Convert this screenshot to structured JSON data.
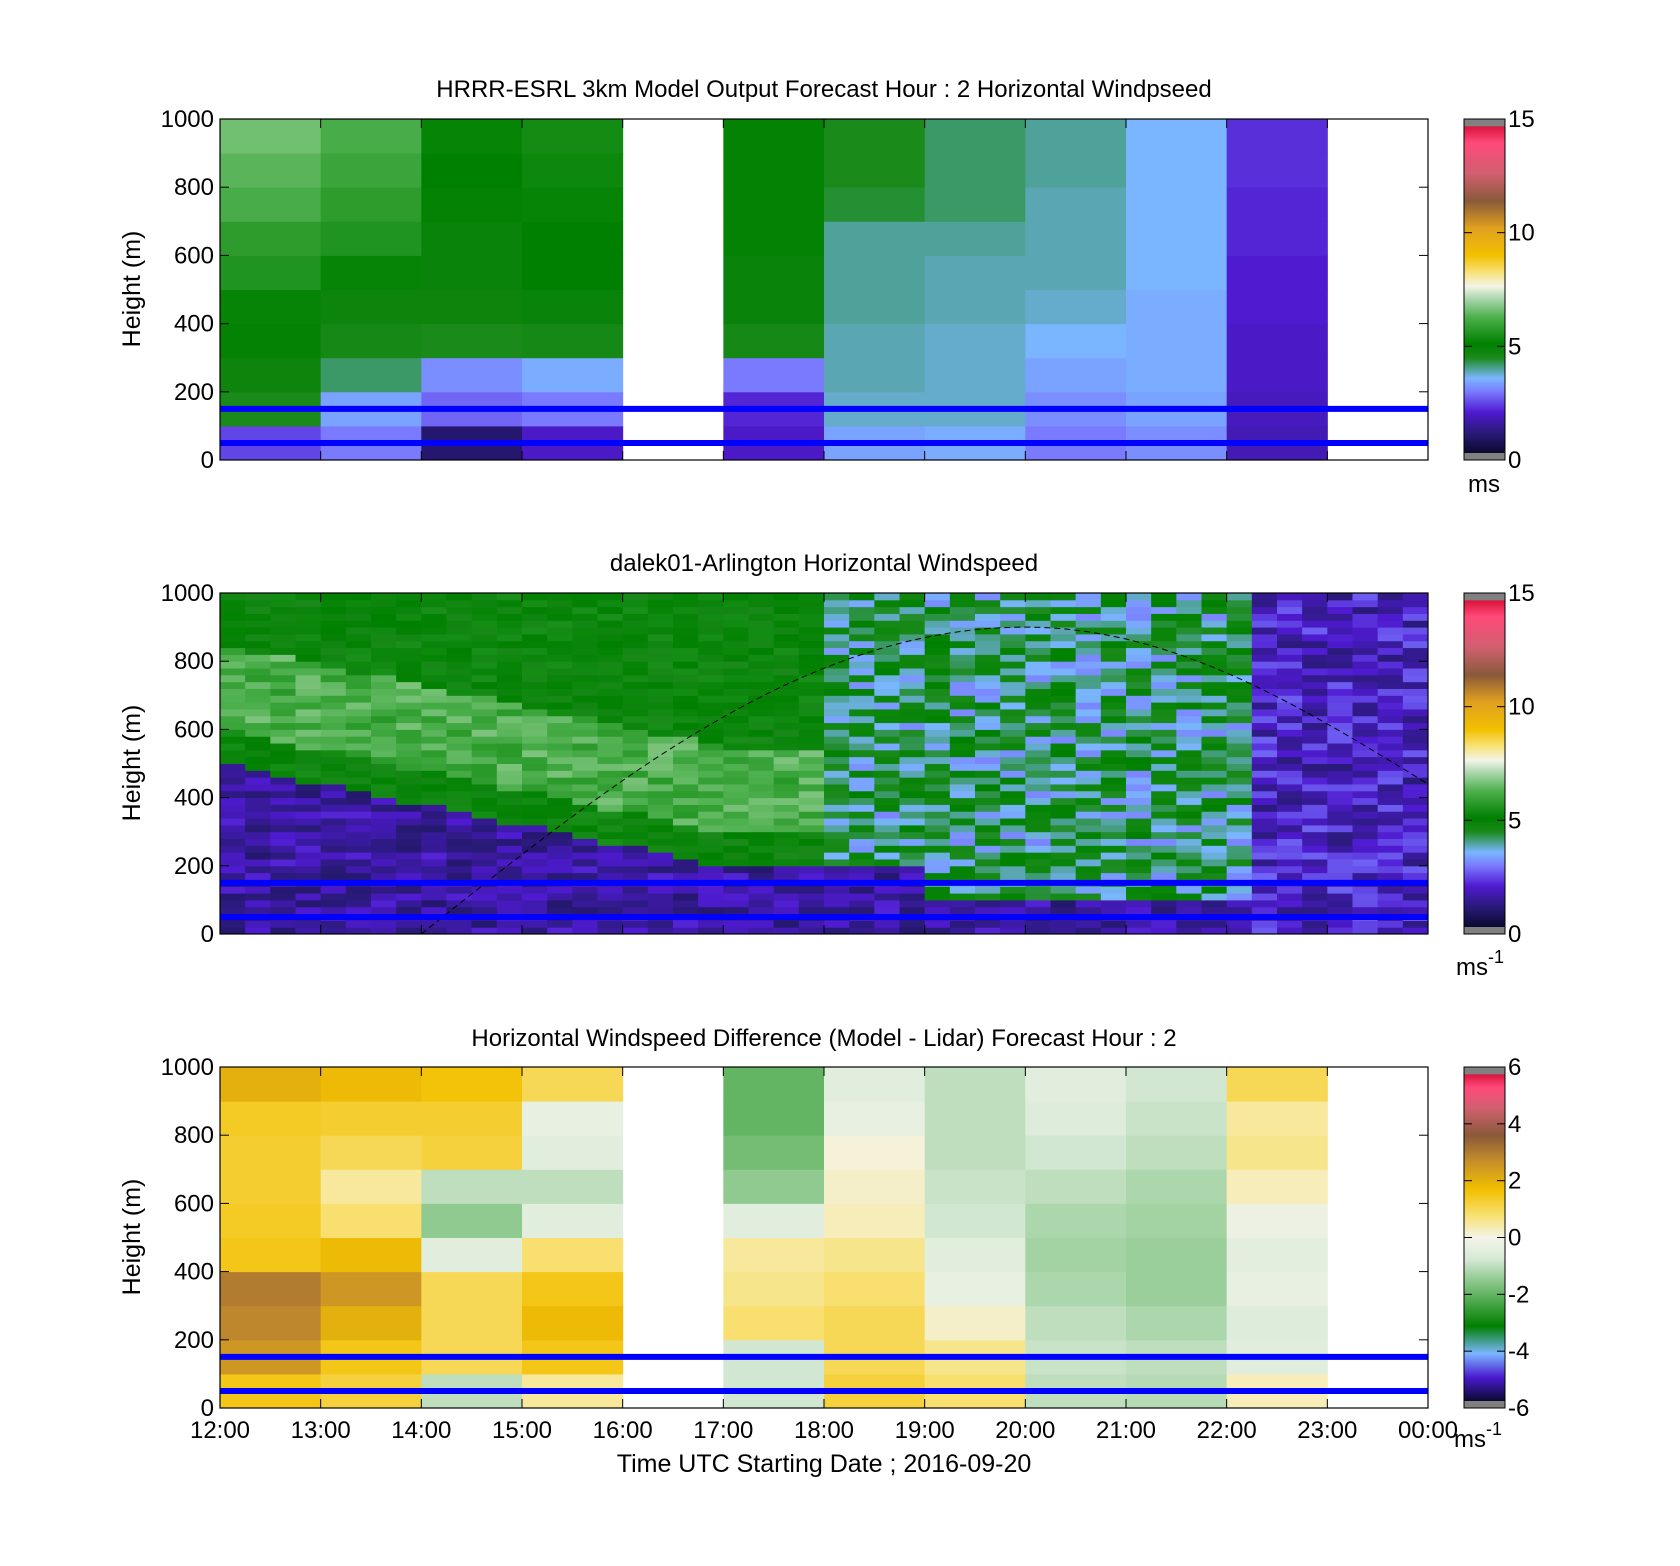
{
  "chart_data": [
    {
      "type": "heatmap",
      "title": "HRRR-ESRL 3km Model Output   Forecast Hour : 2 Horizontal Windpseed",
      "ylabel": "Height (m)",
      "xlabel": "",
      "ylim": [
        0,
        1000
      ],
      "xlim": [
        "12:00",
        "00:00"
      ],
      "yticks": [
        "0",
        "200",
        "400",
        "600",
        "800",
        "1000"
      ],
      "colorbar": {
        "ticks": [
          "0",
          "5",
          "10",
          "15"
        ],
        "unit": "ms",
        "range": [
          0,
          15
        ]
      },
      "columns": [
        "12:00",
        "13:00",
        "14:00",
        "15:00",
        "16:00",
        "17:00",
        "18:00",
        "19:00",
        "20:00",
        "21:00",
        "22:00",
        "23:00"
      ],
      "column_values": [
        [
          2.5,
          4.5,
          4.8,
          5.0,
          5.2,
          5.6,
          5.8,
          6.2,
          6.4,
          6.6
        ],
        [
          3.0,
          3.4,
          4.2,
          4.6,
          4.8,
          5.2,
          5.6,
          5.8,
          6.0,
          6.2
        ],
        [
          1.0,
          2.8,
          3.2,
          4.5,
          4.8,
          4.9,
          4.9,
          5.0,
          5.1,
          5.2
        ],
        [
          2.0,
          3.0,
          3.5,
          4.6,
          4.9,
          5.1,
          5.1,
          5.2,
          5.3,
          5.4
        ],
        [
          null,
          null,
          null,
          null,
          null,
          null,
          null,
          null,
          null,
          null
        ],
        [
          2.0,
          2.2,
          3.0,
          4.6,
          4.9,
          4.9,
          5.0,
          5.0,
          5.0,
          5.0
        ],
        [
          3.4,
          3.8,
          3.9,
          3.9,
          4.0,
          4.0,
          4.0,
          4.4,
          4.5,
          4.5
        ],
        [
          3.5,
          3.8,
          3.8,
          3.8,
          3.9,
          3.9,
          4.0,
          4.2,
          4.2,
          4.2
        ],
        [
          3.0,
          3.2,
          3.4,
          3.6,
          3.8,
          3.9,
          3.9,
          3.9,
          4.0,
          4.0
        ],
        [
          3.2,
          3.4,
          3.5,
          3.5,
          3.5,
          3.6,
          3.6,
          3.6,
          3.6,
          3.6
        ],
        [
          1.8,
          1.9,
          2.0,
          2.0,
          2.1,
          2.1,
          2.2,
          2.2,
          2.3,
          2.3
        ],
        [
          null,
          null,
          null,
          null,
          null,
          null,
          null,
          null,
          null,
          null
        ]
      ],
      "reference_lines_m": [
        50,
        150
      ]
    },
    {
      "type": "heatmap",
      "title": "dalek01-Arlington  Horizontal Windspeed",
      "ylabel": "Height (m)",
      "xlabel": "",
      "ylim": [
        0,
        1000
      ],
      "xlim": [
        "12:00",
        "00:00"
      ],
      "yticks": [
        "0",
        "200",
        "400",
        "600",
        "800",
        "1000"
      ],
      "colorbar": {
        "ticks": [
          "0",
          "5",
          "10",
          "15"
        ],
        "unit": "ms",
        "unit_sup": "-1",
        "range": [
          0,
          15
        ]
      },
      "mixing_layer_note": "low-level windspeed 1-2 ms-1 below a sloping boundary from ~500 m at 12:00 to ~200 m at 17:00; 4-6 ms-1 aloft; 2-3 ms-1 after 22:00",
      "reference_lines_m": [
        50,
        150
      ],
      "dashed_curve": {
        "start": [
          "14:00",
          0
        ],
        "peak": [
          "20:00",
          900
        ],
        "end": [
          "00:00",
          440
        ]
      }
    },
    {
      "type": "heatmap",
      "title": "Horizontal Windspeed Difference (Model - Lidar) Forecast Hour : 2",
      "ylabel": "Height (m)",
      "xlabel": "Time UTC  Starting Date ; 2016-09-20",
      "ylim": [
        0,
        1000
      ],
      "xticks": [
        "12:00",
        "13:00",
        "14:00",
        "15:00",
        "16:00",
        "17:00",
        "18:00",
        "19:00",
        "20:00",
        "21:00",
        "22:00",
        "23:00",
        "00:00"
      ],
      "yticks": [
        "0",
        "200",
        "400",
        "600",
        "800",
        "1000"
      ],
      "colorbar": {
        "ticks": [
          "-6",
          "-4",
          "-2",
          "0",
          "2",
          "4",
          "6"
        ],
        "unit": "ms",
        "unit_sup": "-1",
        "range": [
          -6,
          6
        ]
      },
      "columns": [
        "12:00",
        "13:00",
        "14:00",
        "15:00",
        "16:00",
        "17:00",
        "18:00",
        "19:00",
        "20:00",
        "21:00",
        "22:00",
        "23:00"
      ],
      "column_values": [
        [
          1.5,
          2.5,
          2.8,
          3.0,
          1.5,
          1.4,
          1.3,
          1.3,
          1.4,
          2.0
        ],
        [
          1.2,
          1.5,
          2.0,
          2.5,
          1.8,
          0.8,
          0.5,
          1.0,
          1.3,
          1.8
        ],
        [
          -1.0,
          1.0,
          1.0,
          1.0,
          -0.5,
          -1.5,
          -1.0,
          1.2,
          1.3,
          1.6
        ],
        [
          0.5,
          1.5,
          1.8,
          1.5,
          0.8,
          -0.5,
          -1.0,
          -0.5,
          -0.3,
          1.0
        ],
        [
          null,
          null,
          null,
          null,
          null,
          null,
          null,
          null,
          null,
          null
        ],
        [
          -0.8,
          -0.8,
          0.8,
          0.6,
          0.5,
          -0.5,
          -1.5,
          -1.8,
          -2.0,
          -2.0
        ],
        [
          1.2,
          1.0,
          1.0,
          0.8,
          0.6,
          0.3,
          0.2,
          0.1,
          -0.3,
          -0.5
        ],
        [
          0.8,
          0.6,
          0.2,
          -0.3,
          -0.5,
          -0.8,
          -0.9,
          -1.0,
          -1.0,
          -1.0
        ],
        [
          -1.0,
          -0.9,
          -1.0,
          -1.2,
          -1.3,
          -1.2,
          -1.0,
          -0.8,
          -0.6,
          -0.5
        ],
        [
          -1.1,
          -1.0,
          -1.2,
          -1.4,
          -1.4,
          -1.3,
          -1.2,
          -1.0,
          -0.9,
          -0.8
        ],
        [
          0.3,
          -0.5,
          -0.6,
          -0.3,
          -0.4,
          -0.2,
          0.3,
          0.6,
          0.5,
          1.0
        ],
        [
          null,
          null,
          null,
          null,
          null,
          null,
          null,
          null,
          null,
          null
        ]
      ],
      "reference_lines_m": [
        50,
        150
      ]
    }
  ]
}
